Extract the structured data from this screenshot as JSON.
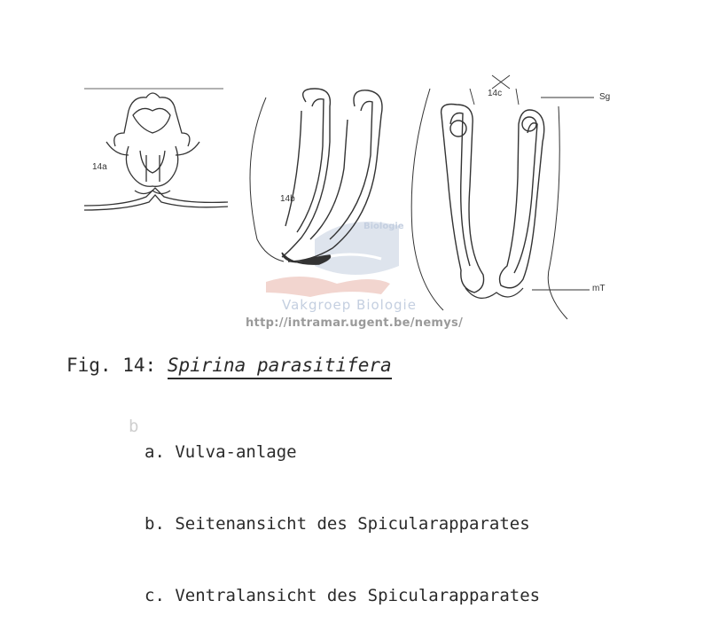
{
  "figure": {
    "panel_labels": {
      "a": "14a",
      "b": "14b",
      "c": "14c"
    },
    "structure_labels": {
      "sg": "Sg",
      "mt": "mT"
    }
  },
  "watermark": {
    "arc_text": "Biologie",
    "org_text": "Vakgroep Biologie",
    "url": "http://intramar.ugent.be/nemys/"
  },
  "caption": {
    "prefix": "Fig. 14:",
    "species": "Spirina parasitifera"
  },
  "legend": {
    "items": [
      "a. Vulva-anlage",
      "b. Seitenansicht des Spicularapparates",
      "c. Ventralansicht des Spicularapparates"
    ],
    "ghost_mark": "b"
  },
  "colors": {
    "ink": "#2a2a2a",
    "watermark_blue": "#c4cfe0",
    "watermark_red": "#e8b3a8"
  }
}
